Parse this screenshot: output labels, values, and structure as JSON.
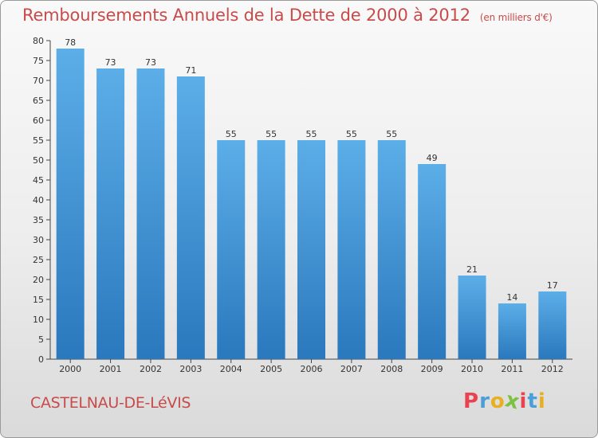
{
  "header": {
    "title": "Remboursements Annuels de la Dette de 2000 à 2012",
    "subtitle": "(en milliers d'€)"
  },
  "footer": {
    "commune": "CASTELNAU-DE-LéVIS",
    "logo_letters": [
      "P",
      "r",
      "o",
      "x",
      "i",
      "t",
      "i"
    ],
    "logo_colors": [
      "#e8434e",
      "#4a9fd8",
      "#e8b020",
      "#7cc142",
      "#e8434e",
      "#4a9fd8",
      "#e8b020"
    ]
  },
  "chart_data": {
    "type": "bar",
    "categories": [
      "2000",
      "2001",
      "2002",
      "2003",
      "2004",
      "2005",
      "2006",
      "2007",
      "2008",
      "2009",
      "2010",
      "2011",
      "2012"
    ],
    "values": [
      78,
      73,
      73,
      71,
      55,
      55,
      55,
      55,
      55,
      49,
      21,
      14,
      17
    ],
    "ylim": [
      0,
      80
    ],
    "ytick_step": 5,
    "grid": false,
    "bar_color_top": "#5caee8",
    "bar_color_bottom": "#2a78bd"
  }
}
